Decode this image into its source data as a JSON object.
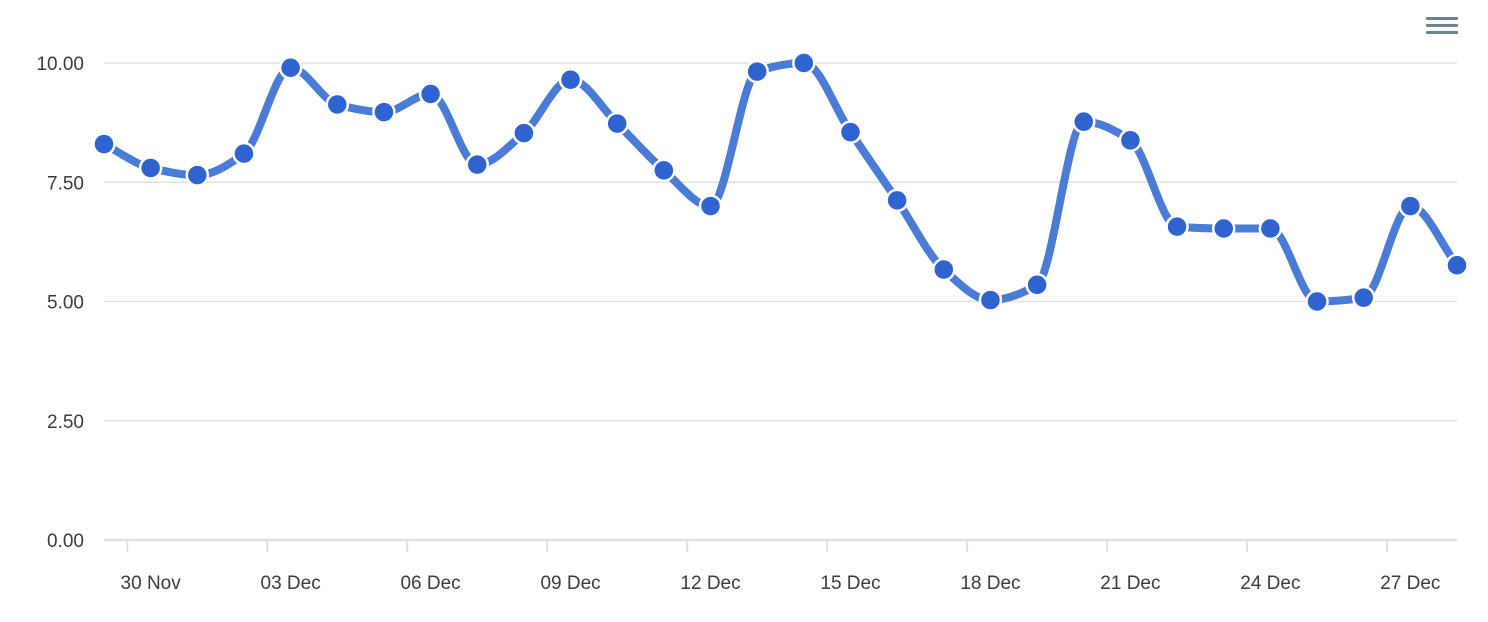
{
  "toolbar": {
    "menu_icon": "hamburger-menu-icon"
  },
  "chart_data": {
    "type": "line",
    "title": "",
    "xlabel": "",
    "ylabel": "",
    "ylim": [
      0,
      10
    ],
    "grid": true,
    "y_ticks": [
      "0.00",
      "2.50",
      "5.00",
      "7.50",
      "10.00"
    ],
    "x_ticks": [
      "30 Nov",
      "03 Dec",
      "06 Dec",
      "09 Dec",
      "12 Dec",
      "15 Dec",
      "18 Dec",
      "21 Dec",
      "24 Dec",
      "27 Dec"
    ],
    "colors": {
      "series": "#4a7bd6",
      "marker": "#2f63cf",
      "marker_stroke": "#ffffff"
    },
    "series": [
      {
        "x": [
          "29 Nov",
          "30 Nov",
          "01 Dec",
          "02 Dec",
          "03 Dec",
          "04 Dec",
          "05 Dec",
          "06 Dec",
          "07 Dec",
          "08 Dec",
          "09 Dec",
          "10 Dec",
          "11 Dec",
          "12 Dec",
          "13 Dec",
          "14 Dec",
          "15 Dec",
          "16 Dec",
          "17 Dec",
          "18 Dec",
          "19 Dec",
          "20 Dec",
          "21 Dec",
          "22 Dec",
          "23 Dec",
          "24 Dec",
          "25 Dec",
          "26 Dec",
          "27 Dec",
          "28 Dec"
        ],
        "values": [
          8.3,
          7.8,
          7.65,
          8.1,
          9.9,
          9.13,
          8.97,
          9.35,
          7.87,
          8.53,
          9.65,
          8.73,
          7.75,
          7.0,
          9.82,
          10.0,
          8.55,
          7.12,
          5.67,
          5.03,
          5.35,
          8.77,
          8.38,
          6.57,
          6.53,
          6.53,
          5.0,
          5.08,
          7.0,
          5.76
        ]
      }
    ]
  }
}
